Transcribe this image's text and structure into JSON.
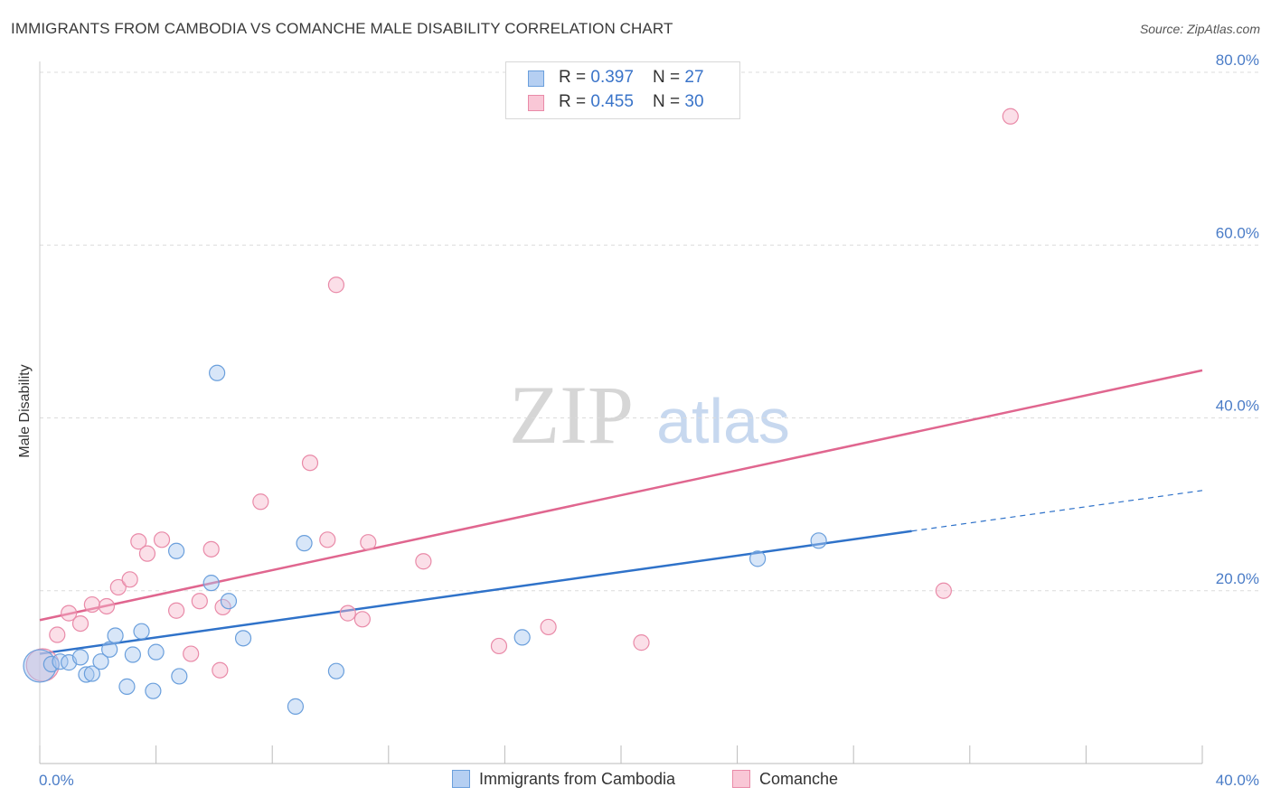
{
  "title": "IMMIGRANTS FROM CAMBODIA VS COMANCHE MALE DISABILITY CORRELATION CHART",
  "source": "Source: ZipAtlas.com",
  "watermark": {
    "zip": "ZIP",
    "atlas": "atlas"
  },
  "colors": {
    "blue_fill": "#a9c8f0",
    "blue_stroke": "#6a9fdc",
    "blue_line": "#2f72c9",
    "pink_fill": "#f7b9cc",
    "pink_stroke": "#e98aa8",
    "pink_line": "#e0668f",
    "tick_text": "#4a7cc7",
    "grid": "#dcdcdc"
  },
  "legend": {
    "rows": [
      {
        "r_label": "R = ",
        "r_value": "0.397",
        "n_label": "N = ",
        "n_value": "27"
      },
      {
        "r_label": "R = ",
        "r_value": "0.455",
        "n_label": "N = ",
        "n_value": "30"
      }
    ]
  },
  "bottom_legend": {
    "series1": "Immigrants from Cambodia",
    "series2": "Comanche"
  },
  "chart_data": {
    "type": "scatter",
    "title": "IMMIGRANTS FROM CAMBODIA VS COMANCHE MALE DISABILITY CORRELATION CHART",
    "xlabel": "",
    "ylabel": "Male Disability",
    "xlim": [
      0,
      40
    ],
    "ylim": [
      0,
      80
    ],
    "x_ticks": [
      "0.0%",
      "40.0%"
    ],
    "y_ticks": [
      {
        "value": 20,
        "label": "20.0%"
      },
      {
        "value": 40,
        "label": "40.0%"
      },
      {
        "value": 60,
        "label": "60.0%"
      },
      {
        "value": 80,
        "label": "80.0%"
      }
    ],
    "grid": true,
    "legend_position": "top-center",
    "series": [
      {
        "name": "Immigrants from Cambodia",
        "R": 0.397,
        "N": 27,
        "trend": {
          "x": [
            0,
            30
          ],
          "y": [
            12.7,
            26.9
          ],
          "extended_to": [
            40,
            31.6
          ]
        },
        "points": [
          {
            "x": 0.0,
            "y": 11.3,
            "big": true
          },
          {
            "x": 0.4,
            "y": 11.5
          },
          {
            "x": 0.7,
            "y": 11.8
          },
          {
            "x": 1.0,
            "y": 11.7
          },
          {
            "x": 1.4,
            "y": 12.3
          },
          {
            "x": 1.6,
            "y": 10.3
          },
          {
            "x": 1.8,
            "y": 10.4
          },
          {
            "x": 2.1,
            "y": 11.8
          },
          {
            "x": 2.4,
            "y": 13.2
          },
          {
            "x": 2.6,
            "y": 14.8
          },
          {
            "x": 3.0,
            "y": 8.9
          },
          {
            "x": 3.2,
            "y": 12.6
          },
          {
            "x": 3.5,
            "y": 15.3
          },
          {
            "x": 3.9,
            "y": 8.4
          },
          {
            "x": 4.0,
            "y": 12.9
          },
          {
            "x": 4.8,
            "y": 10.1
          },
          {
            "x": 5.9,
            "y": 20.9
          },
          {
            "x": 6.1,
            "y": 45.2
          },
          {
            "x": 6.5,
            "y": 18.8
          },
          {
            "x": 7.0,
            "y": 14.5
          },
          {
            "x": 8.8,
            "y": 6.6
          },
          {
            "x": 9.1,
            "y": 25.5
          },
          {
            "x": 10.2,
            "y": 10.7
          },
          {
            "x": 16.6,
            "y": 14.6
          },
          {
            "x": 4.7,
            "y": 24.6
          },
          {
            "x": 24.7,
            "y": 23.7
          },
          {
            "x": 26.8,
            "y": 25.8
          }
        ]
      },
      {
        "name": "Comanche",
        "R": 0.455,
        "N": 30,
        "trend": {
          "x": [
            0,
            40
          ],
          "y": [
            16.6,
            45.5
          ]
        },
        "points": [
          {
            "x": 0.1,
            "y": 11.4,
            "big": true
          },
          {
            "x": 0.6,
            "y": 14.9
          },
          {
            "x": 1.0,
            "y": 17.4
          },
          {
            "x": 1.4,
            "y": 16.2
          },
          {
            "x": 1.8,
            "y": 18.4
          },
          {
            "x": 2.3,
            "y": 18.2
          },
          {
            "x": 2.7,
            "y": 20.4
          },
          {
            "x": 3.1,
            "y": 21.3
          },
          {
            "x": 3.4,
            "y": 25.7
          },
          {
            "x": 3.7,
            "y": 24.3
          },
          {
            "x": 4.2,
            "y": 25.9
          },
          {
            "x": 4.7,
            "y": 17.7
          },
          {
            "x": 5.2,
            "y": 12.7
          },
          {
            "x": 5.5,
            "y": 18.8
          },
          {
            "x": 5.9,
            "y": 24.8
          },
          {
            "x": 6.2,
            "y": 10.8
          },
          {
            "x": 6.3,
            "y": 18.1
          },
          {
            "x": 7.6,
            "y": 30.3
          },
          {
            "x": 9.3,
            "y": 34.8
          },
          {
            "x": 9.9,
            "y": 25.9
          },
          {
            "x": 10.2,
            "y": 55.4
          },
          {
            "x": 10.6,
            "y": 17.4
          },
          {
            "x": 11.1,
            "y": 16.7
          },
          {
            "x": 11.3,
            "y": 25.6
          },
          {
            "x": 13.2,
            "y": 23.4
          },
          {
            "x": 15.8,
            "y": 13.6
          },
          {
            "x": 17.5,
            "y": 15.8
          },
          {
            "x": 20.7,
            "y": 14.0
          },
          {
            "x": 31.1,
            "y": 20.0
          },
          {
            "x": 33.4,
            "y": 74.9
          }
        ]
      }
    ]
  }
}
